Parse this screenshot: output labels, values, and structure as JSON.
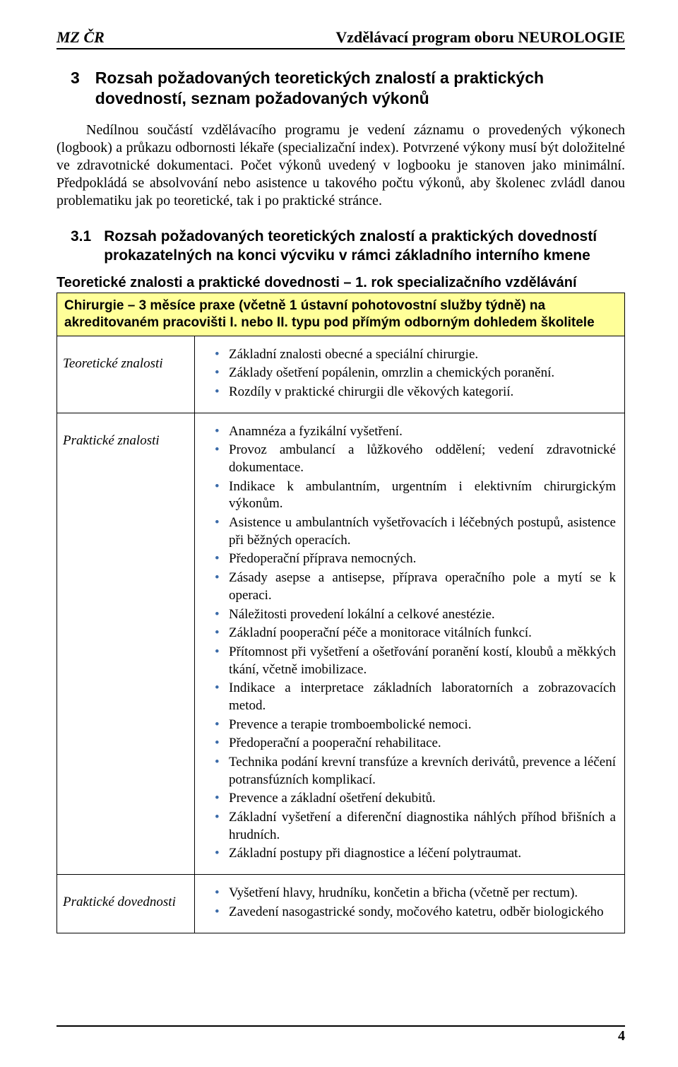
{
  "header": {
    "left": "MZ ČR",
    "right": "Vzdělávací program oboru NEUROLOGIE"
  },
  "section": {
    "number": "3",
    "title": "Rozsah požadovaných teoretických znalostí a praktických dovedností, seznam požadovaných výkonů"
  },
  "paragraph": "Nedílnou součástí vzdělávacího programu je vedení záznamu o provedených výkonech (logbook) a průkazu odbornosti lékaře (specializační index). Potvrzené výkony musí být doložitelné ve zdravotnické dokumentaci. Počet výkonů uvedený v logbooku je stanoven jako minimální. Předpokládá se absolvování nebo asistence u takového počtu výkonů, aby školenec zvládl danou problematiku jak po teoretické, tak i po praktické stránce.",
  "subsection": {
    "number": "3.1",
    "title": "Rozsah požadovaných teoretických znalostí a praktických dovedností prokazatelných na konci výcviku v rámci základního interního kmene"
  },
  "subheading": "Teoretické znalosti a praktické dovednosti – 1. rok specializačního vzdělávání",
  "tableHeader": "Chirurgie – 3 měsíce praxe (včetně 1 ústavní pohotovostní služby týdně) na akreditovaném pracovišti I. nebo II. typu pod přímým odborným dohledem školitele",
  "rows": [
    {
      "label": "Teoretické znalosti",
      "items": [
        "Základní znalosti obecné a speciální chirurgie.",
        "Základy ošetření popálenin, omrzlin a chemických poranění.",
        "Rozdíly v praktické chirurgii dle věkových kategorií."
      ]
    },
    {
      "label": "Praktické znalosti",
      "items": [
        "Anamnéza a fyzikální vyšetření.",
        "Provoz ambulancí a lůžkového oddělení; vedení zdravotnické dokumentace.",
        "Indikace k ambulantním, urgentním i elektivním chirurgickým výkonům.",
        "Asistence u ambulantních vyšetřovacích i léčebných postupů, asistence při běžných operacích.",
        "Předoperační příprava nemocných.",
        "Zásady asepse a antisepse, příprava operačního pole a mytí se k operaci.",
        "Náležitosti provedení lokální a celkové anestézie.",
        "Základní pooperační péče a monitorace vitálních funkcí.",
        "Přítomnost při vyšetření a ošetřování poranění kostí, kloubů a měkkých tkání, včetně imobilizace.",
        "Indikace a interpretace základních laboratorních a zobrazovacích metod.",
        "Prevence a terapie tromboembolické nemoci.",
        "Předoperační a pooperační rehabilitace.",
        "Technika podání krevní transfúze a krevních derivátů, prevence a léčení potransfúzních komplikací.",
        "Prevence a základní ošetření dekubitů.",
        "Základní vyšetření a diferenční diagnostika náhlých příhod břišních a hrudních.",
        "Základní postupy při diagnostice a léčení polytraumat."
      ]
    },
    {
      "label": "Praktické dovednosti",
      "items": [
        "Vyšetření hlavy, hrudníku, končetin a břicha (včetně per rectum).",
        "Zavedení nasogastrické sondy, močového katetru, odběr biologického"
      ]
    }
  ],
  "style": {
    "bullet_color": "#3a6aa8",
    "highlight_bg": "#ffff99",
    "border_color": "#000000",
    "body_font": "Times New Roman",
    "heading_font": "Arial"
  },
  "pageNumber": "4"
}
